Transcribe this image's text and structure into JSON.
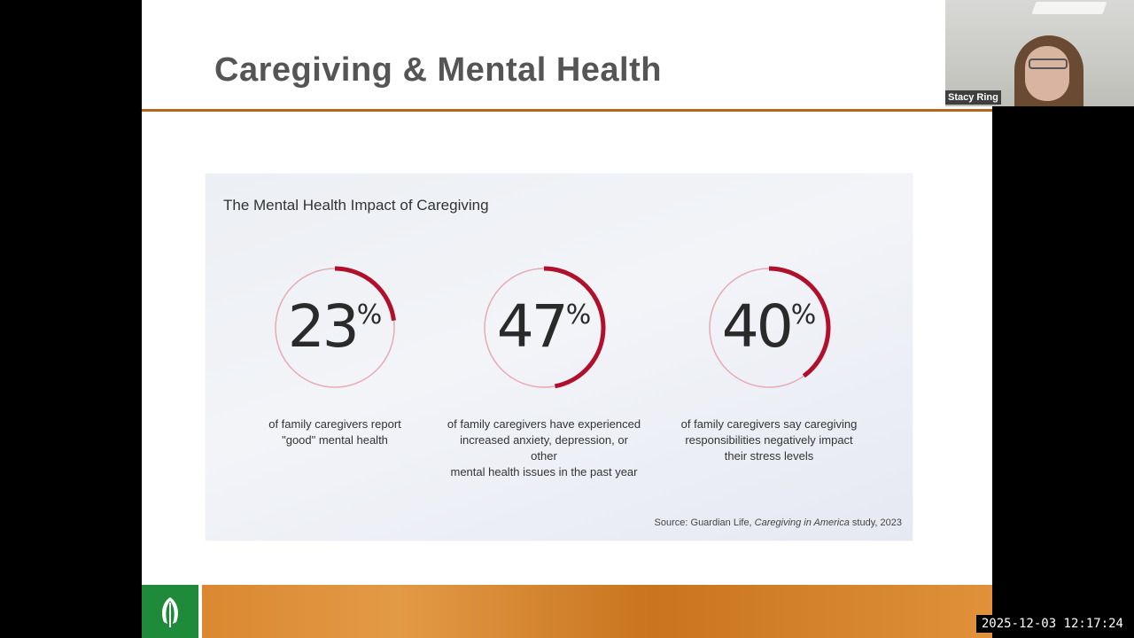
{
  "slide": {
    "title": "Caregiving & Mental Health",
    "infographic": {
      "heading": "The Mental Health Impact of Caregiving",
      "stats": [
        {
          "value": "23",
          "unit": "%",
          "fraction": 0.23,
          "caption_lines": [
            "of family caregivers report",
            "\"good\" mental health"
          ]
        },
        {
          "value": "47",
          "unit": "%",
          "fraction": 0.47,
          "caption_lines": [
            "of family caregivers have experienced",
            "increased anxiety, depression, or other",
            "mental health issues in the past year"
          ]
        },
        {
          "value": "40",
          "unit": "%",
          "fraction": 0.4,
          "caption_lines": [
            "of family caregivers say caregiving",
            "responsibilities negatively impact",
            "their stress levels"
          ]
        }
      ],
      "source_prefix": "Source: Guardian Life, ",
      "source_italic": "Caregiving in America",
      "source_suffix": " study, 2023",
      "ring_track_color": "#e8aab3",
      "ring_fill_color": "#b0102c"
    },
    "footer": {
      "logo_icon": "leaf-logo-icon",
      "accent_color": "#1f8a3a"
    }
  },
  "webcam": {
    "participant_name": "Stacy Ring"
  },
  "recording": {
    "timestamp": "2025-12-03 12:17:24"
  }
}
